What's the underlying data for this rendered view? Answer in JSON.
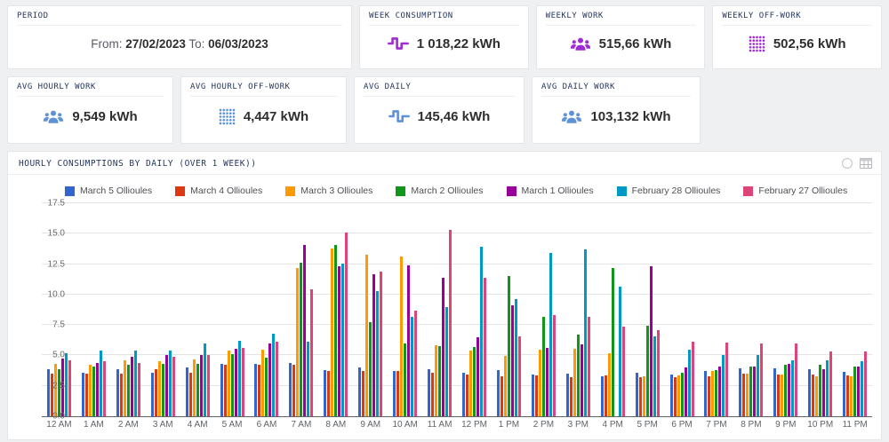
{
  "cards_row1": [
    {
      "label": "PERIOD",
      "type": "period",
      "from_label": "From:",
      "from_value": "27/02/2023",
      "to_label": "To:",
      "to_value": "06/03/2023"
    },
    {
      "label": "WEEK CONSUMPTION",
      "value": "1 018,22 kWh",
      "icon": "pulse-icon",
      "icon_color": "#9e2bd4"
    },
    {
      "label": "WEEKLY WORK",
      "value": "515,66 kWh",
      "icon": "people-icon",
      "icon_color": "#9e2bd4"
    },
    {
      "label": "WEEKLY OFF-WORK",
      "value": "502,56 kWh",
      "icon": "dots-grid-icon",
      "icon_color": "#9e2bd4"
    }
  ],
  "cards_row2": [
    {
      "label": "AVG HOURLY WORK",
      "value": "9,549 kWh",
      "icon": "people-icon",
      "icon_color": "#5e92d8"
    },
    {
      "label": "AVG HOURLY OFF-WORK",
      "value": "4,447 kWh",
      "icon": "dots-grid-icon",
      "icon_color": "#5e92d8"
    },
    {
      "label": "AVG DAILY",
      "value": "145,46 kWh",
      "icon": "pulse-icon",
      "icon_color": "#5e92d8"
    },
    {
      "label": "AVG DAILY WORK",
      "value": "103,132 kWh",
      "icon": "people-icon",
      "icon_color": "#5e92d8"
    }
  ],
  "panel": {
    "title": "HOURLY CONSUMPTIONS BY DAILY (OVER 1 WEEK))"
  },
  "chart_data": {
    "type": "bar",
    "title": "HOURLY CONSUMPTIONS BY DAILY (OVER 1 WEEK))",
    "xlabel": "",
    "ylabel": "",
    "ylim": [
      0,
      17.5
    ],
    "yticks": [
      0.0,
      2.5,
      5.0,
      7.5,
      10.0,
      12.5,
      15.0,
      17.5
    ],
    "grid": true,
    "legend_position": "top-left",
    "unit": "kWh",
    "categories": [
      "12 AM",
      "1 AM",
      "2 AM",
      "3 AM",
      "4 AM",
      "5 AM",
      "6 AM",
      "7 AM",
      "8 AM",
      "9 AM",
      "10 AM",
      "11 AM",
      "12 PM",
      "1 PM",
      "2 PM",
      "3 PM",
      "4 PM",
      "5 PM",
      "6 PM",
      "7 PM",
      "8 PM",
      "9 PM",
      "10 PM",
      "11 PM"
    ],
    "series": [
      {
        "name": "March 5 Ollioules",
        "color": "#3366CC",
        "values": [
          3.9,
          3.6,
          3.9,
          3.6,
          4.0,
          4.3,
          4.3,
          4.4,
          3.8,
          4.0,
          3.75,
          3.9,
          3.6,
          3.8,
          3.4,
          3.5,
          3.3,
          3.55,
          3.4,
          3.75,
          3.95,
          3.95,
          3.9,
          3.65
        ]
      },
      {
        "name": "March 4 Ollioules",
        "color": "#DC3912",
        "values": [
          3.5,
          3.5,
          3.5,
          3.9,
          3.6,
          4.2,
          4.2,
          4.2,
          3.75,
          3.7,
          3.7,
          3.55,
          3.4,
          3.3,
          3.35,
          3.2,
          3.35,
          3.2,
          3.2,
          3.3,
          3.5,
          3.45,
          3.4,
          3.35
        ]
      },
      {
        "name": "March 3 Ollioules",
        "color": "#FF9900",
        "values": [
          4.3,
          4.2,
          4.6,
          4.5,
          4.7,
          5.4,
          5.45,
          12.2,
          13.8,
          13.3,
          13.15,
          5.8,
          5.4,
          4.95,
          5.5,
          5.55,
          5.2,
          3.3,
          3.35,
          3.7,
          3.5,
          3.45,
          3.25,
          3.3
        ]
      },
      {
        "name": "March 2 Ollioules",
        "color": "#109618",
        "values": [
          3.9,
          4.1,
          4.2,
          4.3,
          4.3,
          5.1,
          4.85,
          12.6,
          14.05,
          7.7,
          5.95,
          5.75,
          5.7,
          11.5,
          8.2,
          6.7,
          12.15,
          7.45,
          3.6,
          3.8,
          4.05,
          4.2,
          4.2,
          4.1
        ]
      },
      {
        "name": "March 1 Ollioules",
        "color": "#990099",
        "values": [
          4.75,
          4.4,
          4.9,
          5.0,
          5.0,
          5.55,
          5.95,
          14.05,
          12.3,
          11.7,
          12.4,
          11.35,
          6.5,
          9.1,
          5.6,
          5.9,
          0,
          12.3,
          4.0,
          4.1,
          4.1,
          4.3,
          3.9,
          4.1
        ]
      },
      {
        "name": "February 28 Ollioules",
        "color": "#0099C6",
        "values": [
          5.2,
          5.4,
          5.4,
          5.4,
          5.95,
          6.2,
          6.75,
          6.1,
          12.55,
          10.3,
          8.2,
          9.0,
          13.9,
          9.6,
          13.4,
          13.7,
          10.65,
          6.55,
          5.5,
          5.0,
          5.05,
          4.6,
          4.6,
          4.5
        ]
      },
      {
        "name": "February 27 Ollioules",
        "color": "#DD4477",
        "values": [
          4.6,
          4.5,
          4.35,
          4.9,
          5.0,
          5.6,
          6.1,
          10.45,
          15.1,
          11.9,
          8.7,
          15.35,
          11.4,
          6.6,
          8.3,
          8.2,
          7.4,
          7.05,
          6.1,
          6.05,
          6.0,
          6.0,
          5.3,
          5.35
        ]
      }
    ]
  }
}
